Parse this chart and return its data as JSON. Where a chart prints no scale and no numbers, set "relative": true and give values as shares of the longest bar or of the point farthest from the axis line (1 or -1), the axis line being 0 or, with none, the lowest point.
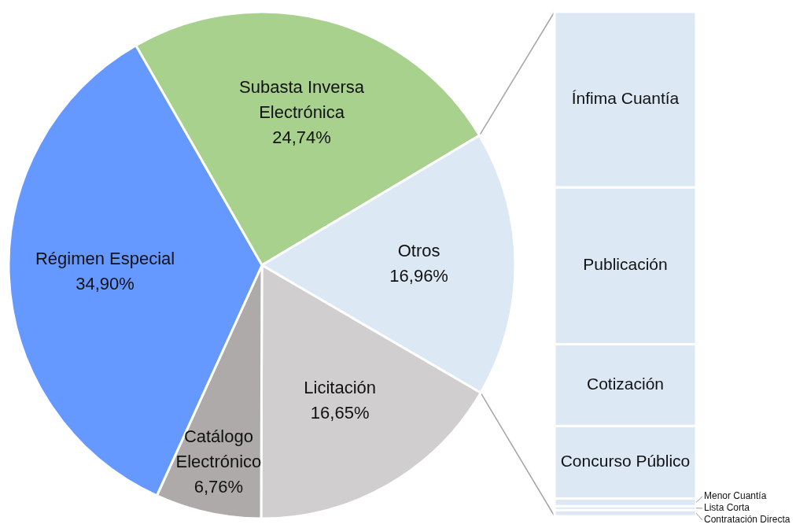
{
  "chart_data": [
    {
      "type": "pie",
      "categories": [
        "Subasta Inversa Electrónica",
        "Otros",
        "Licitación",
        "Catálogo Electrónico",
        "Régimen Especial"
      ],
      "values": [
        24.74,
        16.96,
        16.65,
        6.76,
        34.9
      ],
      "colors": [
        "#a9d18e",
        "#dde8f5",
        "#d0cece",
        "#aeaaaa",
        "#6699ff"
      ],
      "value_labels": [
        "24,74%",
        "16,96%",
        "16,65%",
        "6,76%",
        "34,90%"
      ]
    },
    {
      "type": "bar",
      "stacked": true,
      "relative": true,
      "categories": [
        null
      ],
      "series": [
        {
          "name": "Contratación Directa",
          "color": "#dde8f5",
          "values": [
            0.012
          ]
        },
        {
          "name": "Lista Corta",
          "color": "#dde8f5",
          "values": [
            0.008
          ]
        },
        {
          "name": "Menor Cuantía",
          "color": "#dde8f5",
          "values": [
            0.015
          ]
        },
        {
          "name": "Concurso Público",
          "color": "#dde8f5",
          "values": [
            0.144
          ]
        },
        {
          "name": "Cotización",
          "color": "#dde8f5",
          "values": [
            0.162
          ]
        },
        {
          "name": "Publicación",
          "color": "#dde8f5",
          "values": [
            0.311
          ]
        },
        {
          "name": "Ínfima Cuantía",
          "color": "#dde8f5",
          "values": [
            0.348
          ]
        }
      ]
    }
  ]
}
